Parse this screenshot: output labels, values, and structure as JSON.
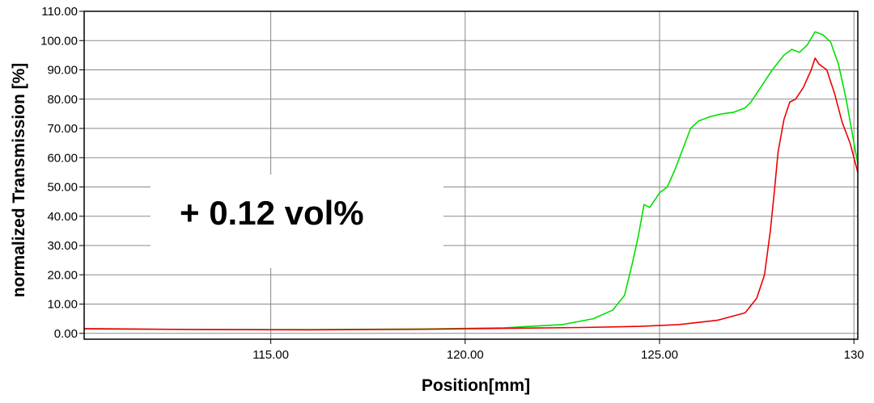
{
  "chart_data": {
    "type": "line",
    "title": "",
    "xlabel": "Position[mm]",
    "ylabel": "normalized Transmission [%]",
    "xlim": [
      110.2,
      130.1
    ],
    "ylim": [
      -2.0,
      110.0
    ],
    "grid": true,
    "legend": "none",
    "annotation": "+ 0.12 vol%",
    "x_ticks": [
      115,
      120,
      125,
      130
    ],
    "x_tick_labels": [
      "115.00",
      "120.00",
      "125.00",
      "130"
    ],
    "y_ticks": [
      0,
      10,
      20,
      30,
      40,
      50,
      60,
      70,
      80,
      90,
      100,
      110
    ],
    "y_tick_labels": [
      "0.00",
      "10.00",
      "20.00",
      "30.00",
      "40.00",
      "50.00",
      "60.00",
      "70.00",
      "80.00",
      "90.00",
      "100.00",
      "110.00"
    ],
    "series": [
      {
        "color": "#00e000",
        "x": [
          110.2,
          113.0,
          116.0,
          119.0,
          121.0,
          122.5,
          123.3,
          123.8,
          124.1,
          124.3,
          124.45,
          124.6,
          124.75,
          124.85,
          125.0,
          125.2,
          125.4,
          125.6,
          125.8,
          126.0,
          126.3,
          126.6,
          126.9,
          127.2,
          127.35,
          127.6,
          127.9,
          128.2,
          128.4,
          128.6,
          128.8,
          129.0,
          129.2,
          129.4,
          129.6,
          129.8,
          130.0,
          130.1
        ],
        "y": [
          1.5,
          1.3,
          1.3,
          1.5,
          1.9,
          3.0,
          5.0,
          8.0,
          13.0,
          24.0,
          33.0,
          44.0,
          43.0,
          45.0,
          48.0,
          50.0,
          56.0,
          63.0,
          70.0,
          72.5,
          74.0,
          75.0,
          75.5,
          77.0,
          79.0,
          84.0,
          90.0,
          95.0,
          97.0,
          96.0,
          98.5,
          103.0,
          102.0,
          99.5,
          92.0,
          80.0,
          65.0,
          58.0
        ]
      },
      {
        "color": "#ee0000",
        "x": [
          110.2,
          113.0,
          116.0,
          119.0,
          121.0,
          123.0,
          124.5,
          125.5,
          126.5,
          127.2,
          127.5,
          127.7,
          127.85,
          127.95,
          128.05,
          128.2,
          128.35,
          128.5,
          128.7,
          128.9,
          129.0,
          129.1,
          129.3,
          129.5,
          129.7,
          129.9,
          130.1
        ],
        "y": [
          1.6,
          1.3,
          1.2,
          1.4,
          1.7,
          2.0,
          2.4,
          3.0,
          4.5,
          7.0,
          12.0,
          20.0,
          35.0,
          48.0,
          62.0,
          73.0,
          79.0,
          80.0,
          84.0,
          90.0,
          94.0,
          92.0,
          90.0,
          82.0,
          72.0,
          65.0,
          55.0
        ]
      }
    ]
  }
}
